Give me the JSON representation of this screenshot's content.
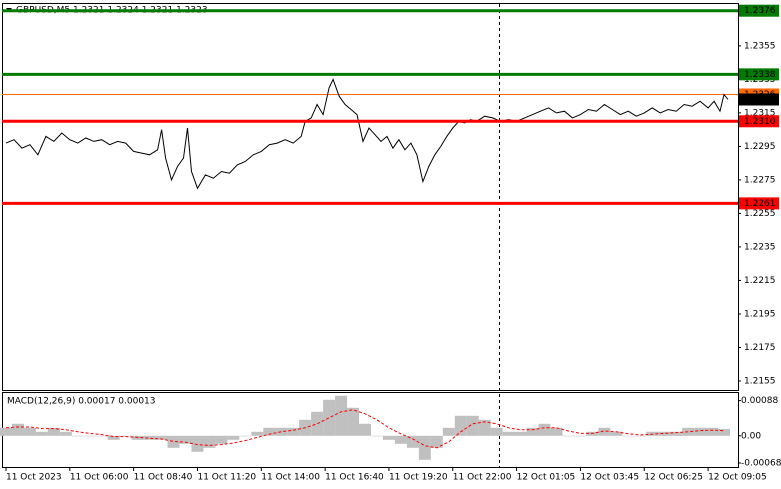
{
  "chart_data": [
    {
      "type": "line",
      "title": "GBPUSD,M5  1.2321 1.2324 1.2321 1.2323",
      "color": "#000000",
      "x": [
        0,
        4,
        8,
        12,
        16,
        20,
        24,
        28,
        32,
        36,
        40,
        44,
        48,
        52,
        56,
        60,
        64,
        68,
        72,
        76,
        78,
        80,
        83,
        86,
        89,
        91,
        93,
        96,
        100,
        104,
        108,
        112,
        116,
        120,
        124,
        128,
        132,
        136,
        140,
        144,
        148,
        150,
        153,
        156,
        159,
        162,
        164,
        167,
        170,
        173,
        176,
        179,
        182,
        185,
        188,
        191,
        194,
        197,
        200,
        203,
        206,
        209,
        212,
        215,
        218,
        221,
        224,
        227,
        230,
        233,
        236,
        240,
        244,
        248,
        252,
        256,
        260,
        264,
        268,
        272,
        276,
        280,
        284,
        288,
        292,
        296,
        300,
        304,
        308,
        312,
        316,
        320,
        324,
        328,
        332,
        336,
        340,
        344,
        348,
        352,
        355,
        358,
        360,
        362
      ],
      "values": [
        1.2297,
        1.2299,
        1.2294,
        1.2296,
        1.229,
        1.2301,
        1.2298,
        1.2303,
        1.2299,
        1.2297,
        1.23,
        1.2298,
        1.2299,
        1.2296,
        1.2298,
        1.2297,
        1.2292,
        1.2291,
        1.229,
        1.2293,
        1.2305,
        1.2288,
        1.2275,
        1.2283,
        1.2288,
        1.2306,
        1.228,
        1.227,
        1.2278,
        1.2276,
        1.228,
        1.2279,
        1.2284,
        1.2286,
        1.229,
        1.2292,
        1.2296,
        1.2297,
        1.2299,
        1.2297,
        1.2301,
        1.231,
        1.2312,
        1.232,
        1.2314,
        1.233,
        1.2335,
        1.2325,
        1.232,
        1.2317,
        1.2314,
        1.2298,
        1.2306,
        1.2302,
        1.2298,
        1.2301,
        1.2294,
        1.2299,
        1.2293,
        1.2297,
        1.229,
        1.2274,
        1.2283,
        1.229,
        1.2295,
        1.2301,
        1.2306,
        1.231,
        1.2309,
        1.2311,
        1.231,
        1.2313,
        1.2312,
        1.231,
        1.2311,
        1.231,
        1.2312,
        1.2314,
        1.2316,
        1.2318,
        1.2315,
        1.2316,
        1.2312,
        1.2314,
        1.2317,
        1.2316,
        1.232,
        1.2317,
        1.2314,
        1.2316,
        1.2313,
        1.2315,
        1.2318,
        1.2315,
        1.2317,
        1.2316,
        1.232,
        1.2319,
        1.2322,
        1.2318,
        1.2322,
        1.2316,
        1.2326,
        1.2323
      ],
      "xlim": [
        -2,
        367
      ],
      "ylim": [
        1.21496,
        1.238
      ],
      "yticks": [
        1.2155,
        1.2175,
        1.2195,
        1.2215,
        1.2235,
        1.2255,
        1.2275,
        1.2295,
        1.2315,
        1.2335,
        1.2355
      ],
      "ask_line": {
        "value": 1.2326,
        "color": "#ff6a00"
      },
      "last_price": 1.2323,
      "levels": [
        {
          "value": 1.2376,
          "color": "#007a00"
        },
        {
          "value": 1.2338,
          "color": "#007a00"
        },
        {
          "value": 1.231,
          "label": "1.2310",
          "color": "#ff0000"
        },
        {
          "value": 1.2261,
          "color": "#ff0000"
        }
      ]
    },
    {
      "type": "macd",
      "title": "MACD(12,26,9) 0.00017 0.00013",
      "x": [
        0,
        6,
        12,
        18,
        24,
        30,
        36,
        42,
        48,
        54,
        60,
        66,
        72,
        78,
        84,
        90,
        96,
        102,
        108,
        114,
        120,
        126,
        132,
        138,
        144,
        150,
        156,
        162,
        168,
        174,
        180,
        186,
        192,
        198,
        204,
        210,
        216,
        222,
        228,
        234,
        240,
        246,
        252,
        258,
        264,
        270,
        276,
        282,
        288,
        294,
        300,
        306,
        312,
        318,
        324,
        330,
        336,
        342,
        348,
        354,
        360
      ],
      "series": [
        {
          "style": "histogram",
          "color": "#c0c0c0",
          "values": [
            0.0002,
            0.0003,
            0.0002,
            0.0001,
            0.0002,
            0.0001,
            0,
            0,
            0,
            -0.0001,
            0,
            -0.0001,
            -0.0001,
            -0.0001,
            -0.0003,
            -0.0002,
            -0.0004,
            -0.0003,
            -0.0002,
            -0.0001,
            0,
            0.0001,
            0.0002,
            0.0002,
            0.0002,
            0.0004,
            0.0006,
            0.0009,
            0.001,
            0.0007,
            0.0003,
            0,
            -0.0001,
            -0.0002,
            -0.0003,
            -0.0006,
            -0.0003,
            0.0002,
            0.0005,
            0.0005,
            0.0004,
            0.0002,
            0.0001,
            0.0001,
            0.0002,
            0.0003,
            0.0002,
            0,
            0,
            0.0001,
            0.0002,
            0.0001,
            0,
            0,
            0.0001,
            0.0001,
            0.0001,
            0.0002,
            0.0002,
            0.0002,
            0.00017
          ]
        },
        {
          "style": "dashed",
          "color": "#ff0000",
          "values": [
            0.0002,
            0.00022,
            0.00022,
            0.00018,
            0.00018,
            0.00015,
            0.0001,
            6e-05,
            3e-05,
            -2e-05,
            -2e-05,
            -4e-05,
            -6e-05,
            -8e-05,
            -0.00014,
            -0.00016,
            -0.00022,
            -0.00024,
            -0.00022,
            -0.00018,
            -0.00012,
            -4e-05,
            4e-05,
            0.0001,
            0.00014,
            0.0002,
            0.0003,
            0.00045,
            0.0006,
            0.00065,
            0.00055,
            0.0004,
            0.0002,
            5e-05,
            -8e-05,
            -0.00025,
            -0.0003,
            -0.00015,
            0.0001,
            0.0003,
            0.00035,
            0.0003,
            0.0002,
            0.00015,
            0.00015,
            0.0002,
            0.0002,
            0.00012,
            6e-05,
            6e-05,
            0.00012,
            0.0001,
            5e-05,
            2e-05,
            4e-05,
            6e-05,
            8e-05,
            0.0001,
            0.00013,
            0.00014,
            0.00013
          ]
        }
      ],
      "xlim": [
        -2,
        367
      ],
      "ylim": [
        -0.00078,
        0.00107
      ],
      "yticks": [
        0.00088,
        {
          "value": 0,
          "label": "0.00"
        },
        -0.00068
      ],
      "xticks": [
        {
          "value": 0,
          "label": "11 Oct 2023"
        },
        {
          "value": 32,
          "label": "11 Oct 06:00"
        },
        {
          "value": 64,
          "label": "11 Oct 08:40"
        },
        {
          "value": 96,
          "label": "11 Oct 11:20"
        },
        {
          "value": 128,
          "label": "11 Oct 14:00"
        },
        {
          "value": 160,
          "label": "11 Oct 16:40"
        },
        {
          "value": 192,
          "label": "11 Oct 19:20"
        },
        {
          "value": 224,
          "label": "11 Oct 22:00"
        },
        {
          "value": 256,
          "label": "12 Oct 01:05"
        },
        {
          "value": 288,
          "label": "12 Oct 03:45"
        },
        {
          "value": 320,
          "label": "12 Oct 06:25"
        },
        {
          "value": 352,
          "label": "12 Oct 09:05"
        }
      ]
    }
  ]
}
